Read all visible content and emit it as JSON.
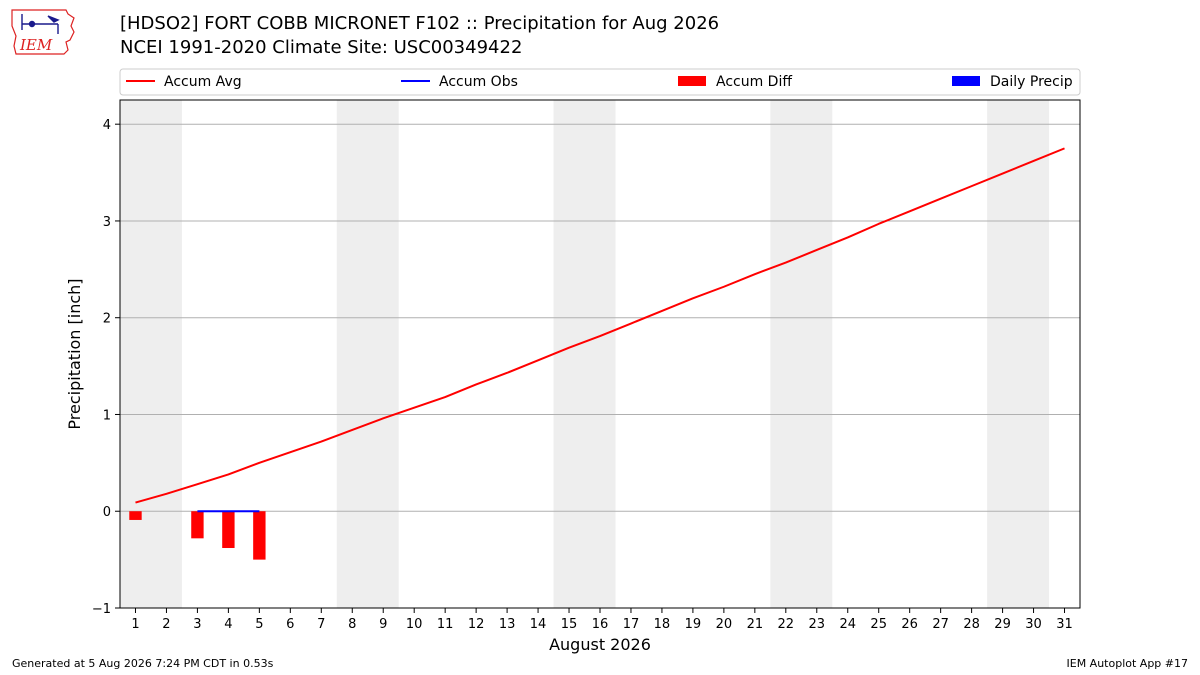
{
  "header": {
    "logo_text": "IEM",
    "title_line1": "[HDSO2] FORT COBB MICRONET F102 :: Precipitation for Aug 2026",
    "title_line2": "NCEI 1991-2020 Climate Site: USC00349422"
  },
  "footer": {
    "generated": "Generated at 5 Aug 2026 7:24 PM CDT in 0.53s",
    "app": "IEM Autoplot App #17"
  },
  "colors": {
    "accum_avg": "#ff0000",
    "accum_obs": "#0000ff",
    "accum_diff": "#ff0000",
    "daily_precip": "#0000ff",
    "weekend_shade": "#eeeeee",
    "grid": "#b0b0b0"
  },
  "chart_data": {
    "type": "line",
    "xlabel": "August 2026",
    "ylabel": "Precipitation [inch]",
    "xlim": [
      0.5,
      31.5
    ],
    "ylim": [
      -1,
      4.25
    ],
    "yticks": [
      -1,
      0,
      1,
      2,
      3,
      4
    ],
    "ytick_labels": [
      "−1",
      "0",
      "1",
      "2",
      "3",
      "4"
    ],
    "x": [
      1,
      2,
      3,
      4,
      5,
      6,
      7,
      8,
      9,
      10,
      11,
      12,
      13,
      14,
      15,
      16,
      17,
      18,
      19,
      20,
      21,
      22,
      23,
      24,
      25,
      26,
      27,
      28,
      29,
      30,
      31
    ],
    "xtick_labels": [
      "1",
      "2",
      "3",
      "4",
      "5",
      "6",
      "7",
      "8",
      "9",
      "10",
      "11",
      "12",
      "13",
      "14",
      "15",
      "16",
      "17",
      "18",
      "19",
      "20",
      "21",
      "22",
      "23",
      "24",
      "25",
      "26",
      "27",
      "28",
      "29",
      "30",
      "31"
    ],
    "grid": "horizontal",
    "legend": {
      "placement": "top",
      "entries": [
        {
          "label": "Accum Avg",
          "kind": "line",
          "color": "#ff0000"
        },
        {
          "label": "Accum Obs",
          "kind": "line",
          "color": "#0000ff"
        },
        {
          "label": "Accum Diff",
          "kind": "bar",
          "color": "#ff0000"
        },
        {
          "label": "Daily Precip",
          "kind": "bar",
          "color": "#0000ff"
        }
      ]
    },
    "weekend_shading": [
      [
        1,
        2
      ],
      [
        8,
        9
      ],
      [
        15,
        16
      ],
      [
        22,
        23
      ],
      [
        29,
        30
      ]
    ],
    "series": [
      {
        "name": "Accum Avg",
        "type": "line",
        "x": [
          1,
          2,
          3,
          4,
          5,
          6,
          7,
          8,
          9,
          10,
          11,
          12,
          13,
          14,
          15,
          16,
          17,
          18,
          19,
          20,
          21,
          22,
          23,
          24,
          25,
          26,
          27,
          28,
          29,
          30,
          31
        ],
        "values": [
          0.09,
          0.18,
          0.28,
          0.38,
          0.5,
          0.61,
          0.72,
          0.84,
          0.96,
          1.07,
          1.18,
          1.31,
          1.43,
          1.56,
          1.69,
          1.81,
          1.94,
          2.07,
          2.2,
          2.32,
          2.45,
          2.57,
          2.7,
          2.83,
          2.97,
          3.1,
          3.23,
          3.36,
          3.49,
          3.62,
          3.75
        ]
      },
      {
        "name": "Accum Obs",
        "type": "line",
        "x": [
          3,
          4,
          5
        ],
        "values": [
          0.0,
          0.0,
          0.0
        ]
      },
      {
        "name": "Accum Diff",
        "type": "bar",
        "x": [
          1,
          3,
          4,
          5
        ],
        "values": [
          -0.09,
          -0.28,
          -0.38,
          -0.5
        ]
      },
      {
        "name": "Daily Precip",
        "type": "bar",
        "x": [],
        "values": []
      }
    ]
  }
}
